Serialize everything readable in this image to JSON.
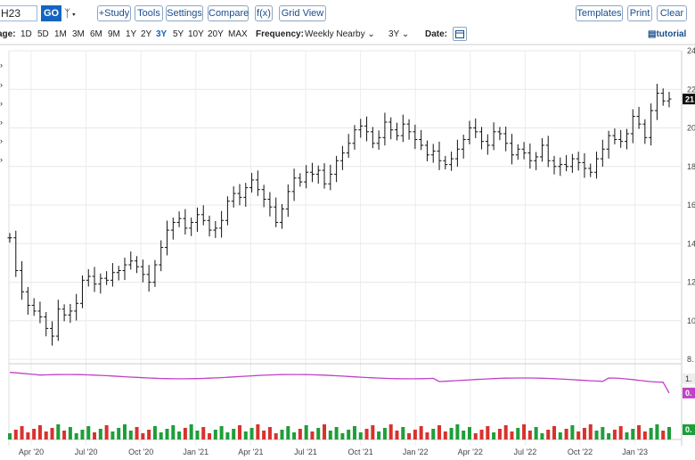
{
  "toolbar": {
    "symbol": "H23",
    "go": "GO",
    "study": "+Study",
    "tools": "Tools",
    "settings": "Settings",
    "compare": "Compare",
    "fx": "f(x)",
    "grid_view": "Grid View",
    "templates": "Templates",
    "print": "Print",
    "clear": "Clear"
  },
  "range_bar": {
    "range_label": "age:",
    "ranges": [
      "1D",
      "5D",
      "1M",
      "3M",
      "6M",
      "9M",
      "1Y",
      "2Y",
      "3Y",
      "5Y",
      "10Y",
      "20Y",
      "MAX"
    ],
    "active_range": "3Y",
    "frequency_label": "Frequency:",
    "frequency_value": "Weekly Nearby",
    "period_value": "3Y",
    "date_label": "Date:",
    "tutorial": "tutorial"
  },
  "chart_data": {
    "type": "bar",
    "x_tick_labels": [
      "Apr '20",
      "Jul '20",
      "Oct '20",
      "Jan '21",
      "Apr '21",
      "Jul '21",
      "Oct '21",
      "Jan '22",
      "Apr '22",
      "Jul '22",
      "Oct '22",
      "Jan '23"
    ],
    "price_axis": {
      "ticks": [
        "24",
        "22",
        "20",
        "18",
        "16",
        "14",
        "12",
        "10",
        "8."
      ],
      "ylim": [
        8,
        24
      ],
      "last_price_label": "21"
    },
    "price_weekly_close": [
      14.3,
      12.6,
      11.5,
      10.8,
      10.5,
      10.2,
      9.6,
      9.2,
      10.6,
      10.3,
      10.5,
      10.9,
      12.1,
      12.3,
      11.9,
      12.2,
      12.1,
      12.5,
      12.6,
      12.9,
      13.1,
      12.8,
      12.4,
      12.0,
      12.9,
      13.8,
      14.7,
      15.1,
      15.3,
      14.8,
      15.1,
      15.5,
      15.2,
      14.7,
      14.8,
      15.2,
      16.2,
      16.6,
      16.4,
      16.9,
      17.3,
      16.8,
      16.3,
      15.9,
      15.1,
      15.8,
      16.7,
      17.4,
      17.2,
      17.7,
      17.6,
      17.8,
      17.1,
      17.6,
      18.3,
      18.7,
      19.2,
      19.9,
      20.1,
      19.8,
      19.2,
      19.5,
      20.3,
      19.9,
      19.6,
      20.2,
      19.8,
      19.4,
      19.1,
      18.6,
      18.8,
      18.3,
      18.1,
      18.4,
      18.9,
      19.4,
      20.0,
      19.8,
      19.3,
      19.1,
      19.8,
      19.7,
      19.2,
      18.6,
      18.9,
      18.7,
      18.3,
      18.5,
      19.1,
      18.3,
      18.0,
      18.1,
      18.0,
      18.4,
      18.2,
      17.9,
      17.7,
      18.4,
      18.9,
      19.6,
      19.4,
      19.3,
      19.7,
      20.6,
      20.2,
      19.5,
      20.9,
      21.8,
      21.4,
      21.5
    ],
    "indicator": {
      "ylim": [
        0.2,
        1.4
      ],
      "ticks": [
        "1.",
        "0."
      ],
      "last_value_label": "0."
    },
    "volume_last_label": "0."
  },
  "colors": {
    "brand": "#1565c0",
    "indicator": "#c041c6",
    "vol_up": "#1e9e3a",
    "vol_down": "#d8322e"
  }
}
